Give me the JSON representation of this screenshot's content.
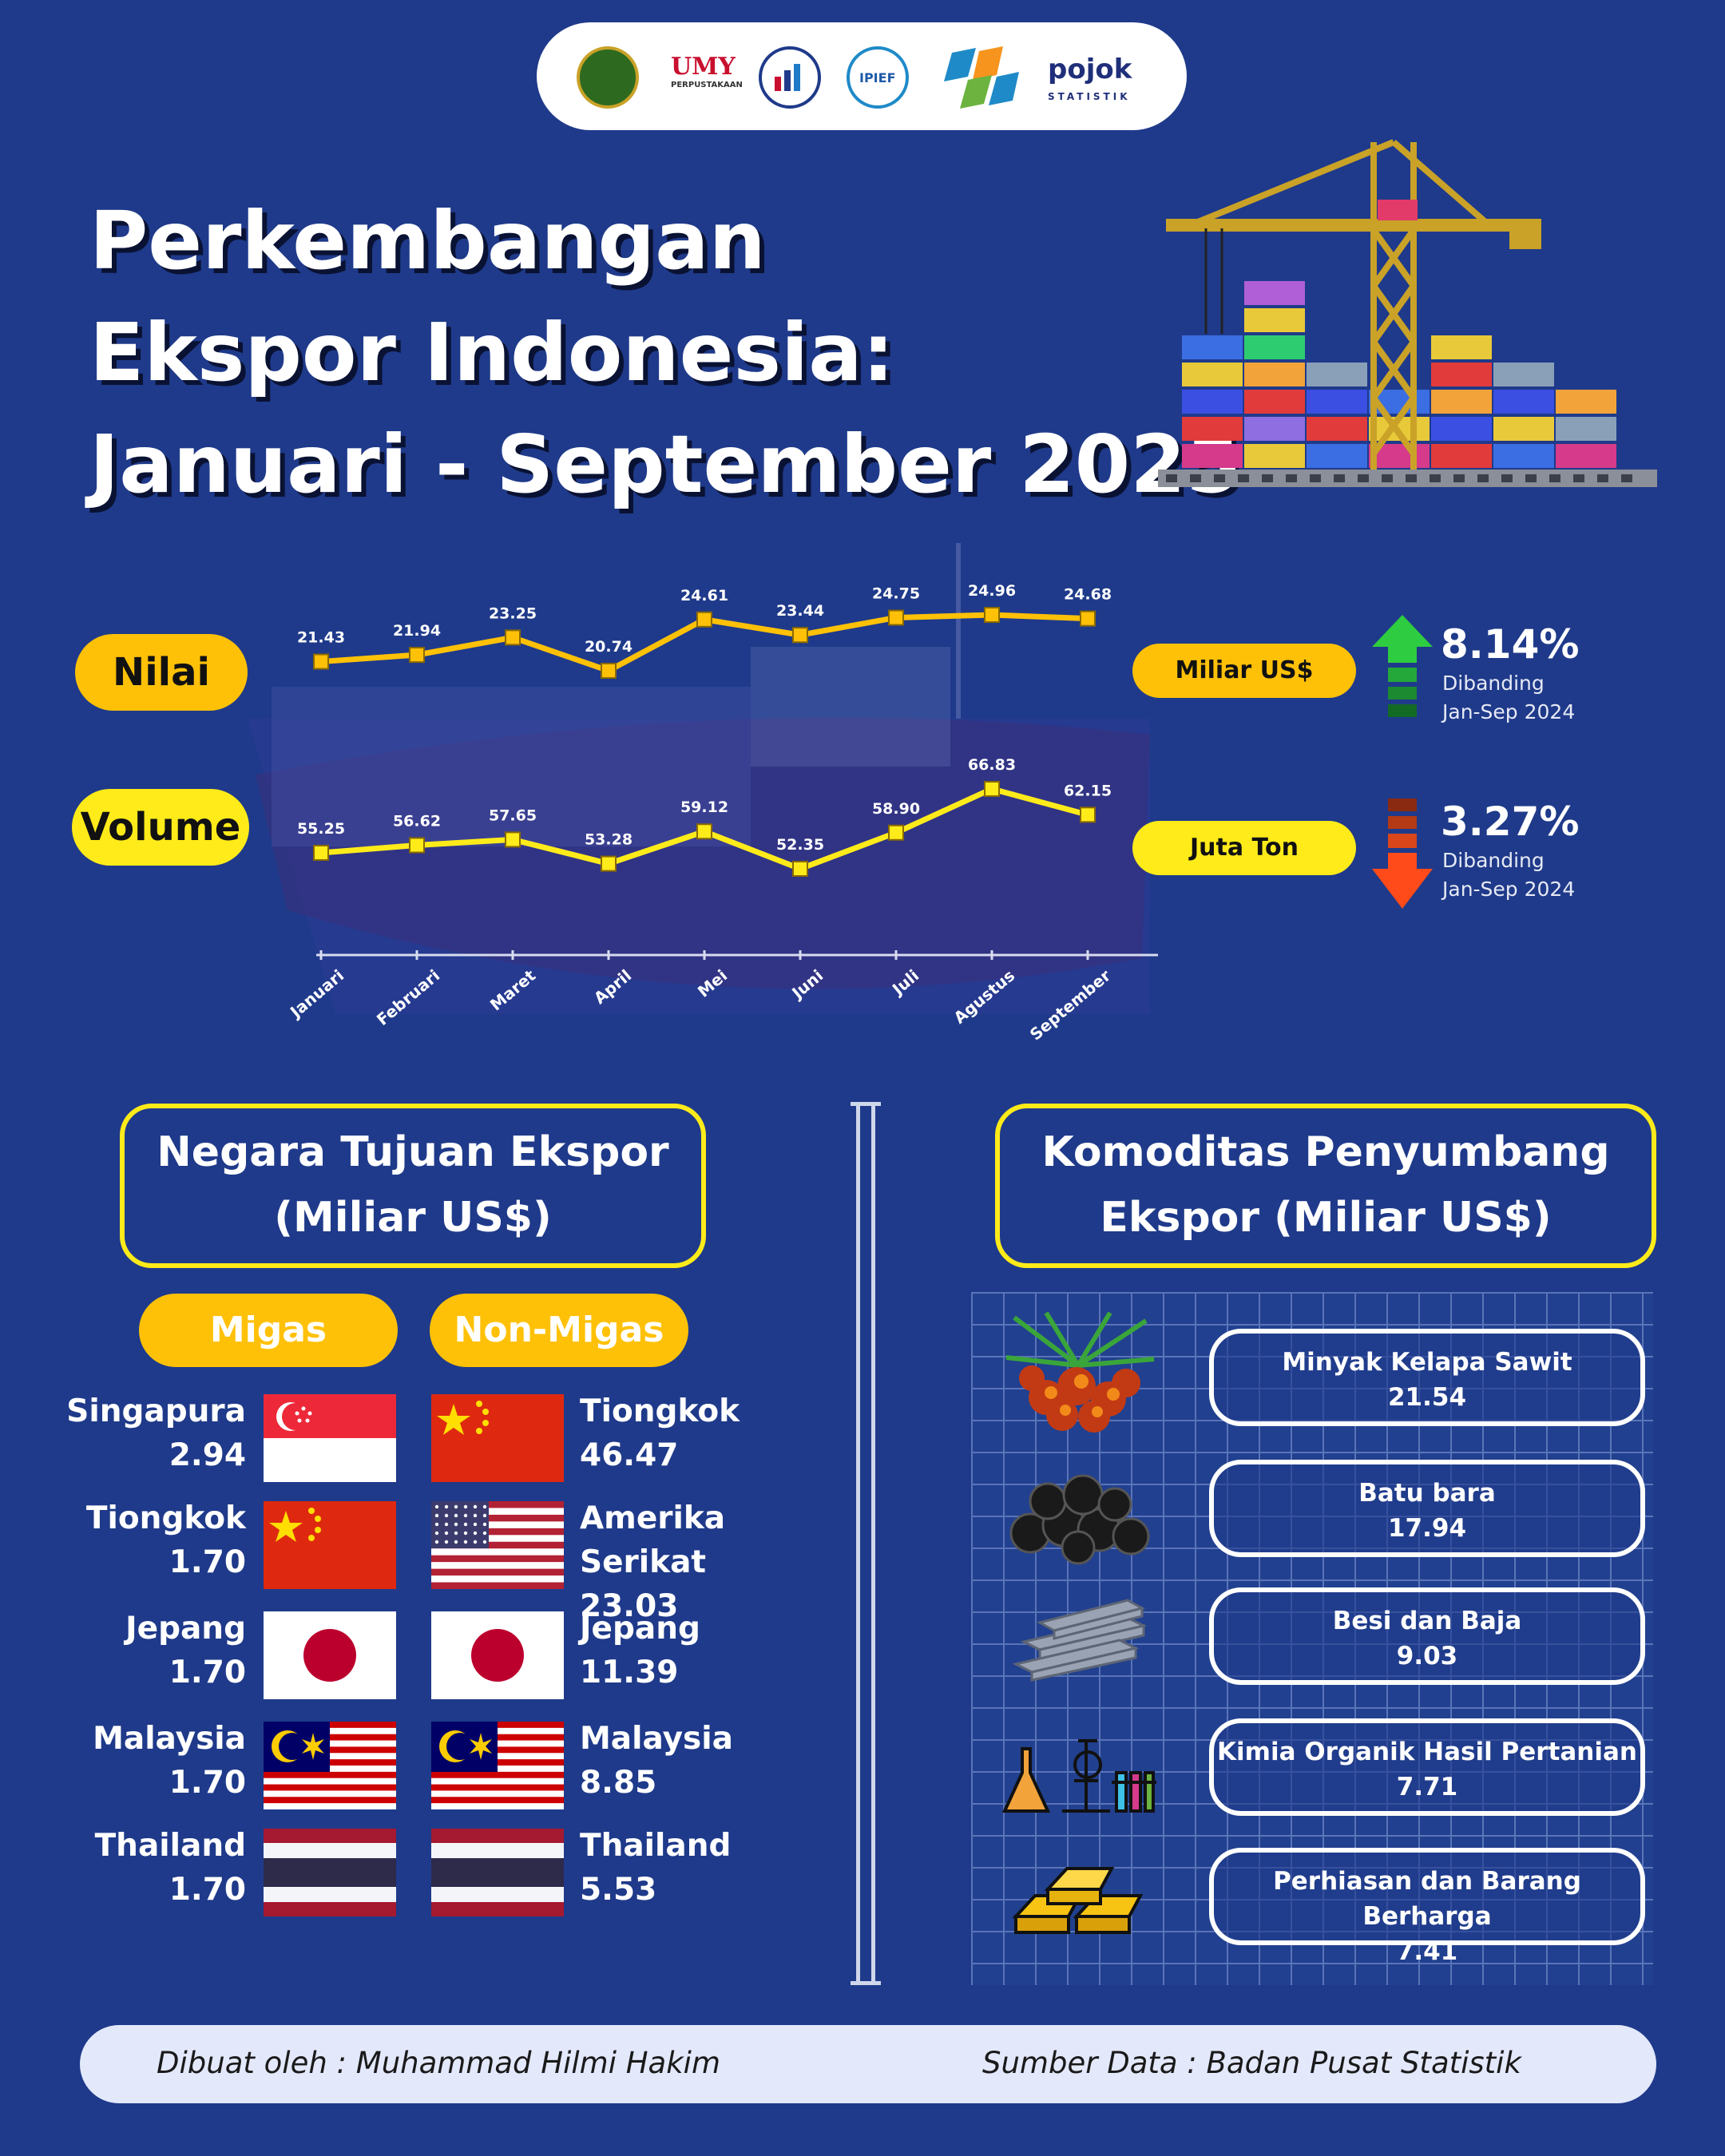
{
  "header": {
    "logos": [
      "umy-seal-logo",
      "umy-perpustakaan-logo",
      "ekonomi-logo",
      "ipief-logo",
      "bps-logo",
      "pojok-statistik-logo"
    ],
    "umy_text": "UMY",
    "umy_sub": "PERPUSTAKAAN",
    "ipief_text": "IPIEF",
    "pojok_text": "pojok",
    "pojok_sub": "STATISTIK"
  },
  "title": {
    "line1": "Perkembangan",
    "line2": "Ekspor Indonesia:",
    "line3": "Januari - September 2025"
  },
  "labels": {
    "nilai": "Nilai",
    "volume": "Volume",
    "nilai_unit": "Miliar US$",
    "volume_unit": "Juta Ton"
  },
  "changes": {
    "nilai_pct": "8.14%",
    "nilai_sub1": "Dibanding",
    "nilai_sub2": "Jan-Sep 2024",
    "volume_pct": "3.27%",
    "volume_sub1": "Dibanding",
    "volume_sub2": "Jan-Sep 2024",
    "nilai_color": "#2ecc40",
    "volume_color": "#ff4a1a"
  },
  "chart_data": {
    "type": "line",
    "categories": [
      "Januari",
      "Februari",
      "Maret",
      "April",
      "Mei",
      "Juni",
      "Juli",
      "Agustus",
      "September"
    ],
    "series": [
      {
        "name": "Nilai",
        "unit": "Miliar US$",
        "color": "#ffc107",
        "values": [
          21.43,
          21.94,
          23.25,
          20.74,
          24.61,
          23.44,
          24.75,
          24.96,
          24.68
        ]
      },
      {
        "name": "Volume",
        "unit": "Juta Ton",
        "color": "#ffeb1a",
        "values": [
          55.25,
          56.62,
          57.65,
          53.28,
          59.12,
          52.35,
          58.9,
          66.83,
          62.15
        ]
      }
    ]
  },
  "destinations": {
    "title_line1": "Negara Tujuan Ekspor",
    "title_line2": "(Miliar US$)",
    "migas_label": "Migas",
    "nonmigas_label": "Non-Migas",
    "migas": [
      {
        "country": "Singapura",
        "value": "2.94",
        "flag": "singapore"
      },
      {
        "country": "Tiongkok",
        "value": "1.70",
        "flag": "china"
      },
      {
        "country": "Jepang",
        "value": "1.70",
        "flag": "japan"
      },
      {
        "country": "Malaysia",
        "value": "1.70",
        "flag": "malaysia"
      },
      {
        "country": "Thailand",
        "value": "1.70",
        "flag": "thailand"
      }
    ],
    "nonmigas": [
      {
        "country": "Tiongkok",
        "value": "46.47",
        "flag": "china"
      },
      {
        "country": "Amerika Serikat",
        "value": "23.03",
        "flag": "usa"
      },
      {
        "country": "Jepang",
        "value": "11.39",
        "flag": "japan"
      },
      {
        "country": "Malaysia",
        "value": "8.85",
        "flag": "malaysia"
      },
      {
        "country": "Thailand",
        "value": "5.53",
        "flag": "thailand"
      }
    ]
  },
  "commodities": {
    "title_line1": "Komoditas Penyumbang",
    "title_line2": "Ekspor (Miliar US$)",
    "items": [
      {
        "name": "Minyak Kelapa Sawit",
        "value": "21.54",
        "icon": "palm-fruit-icon"
      },
      {
        "name": "Batu bara",
        "value": "17.94",
        "icon": "coal-icon"
      },
      {
        "name": "Besi dan Baja",
        "value": "9.03",
        "icon": "steel-beam-icon"
      },
      {
        "name": "Kimia Organik Hasil Pertanian",
        "value": "7.71",
        "icon": "chemistry-lab-icon"
      },
      {
        "name": "Perhiasan dan Barang Berharga",
        "value": "7.41",
        "icon": "gold-bar-icon"
      }
    ]
  },
  "footer": {
    "author": "Dibuat oleh : Muhammad Hilmi Hakim",
    "source": "Sumber Data : Badan Pusat Statistik"
  }
}
